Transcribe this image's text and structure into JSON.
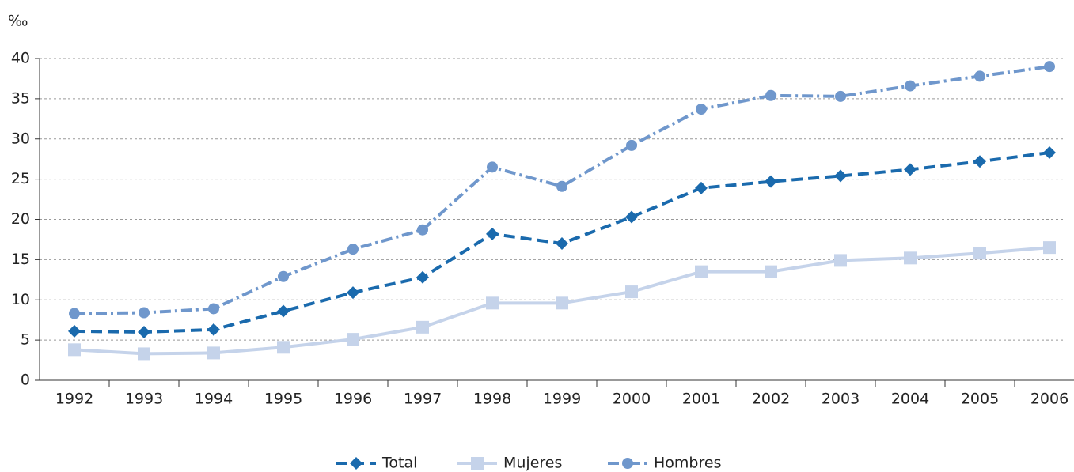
{
  "chart_data": {
    "type": "line",
    "y_unit": "‰",
    "categories": [
      "1992",
      "1993",
      "1994",
      "1995",
      "1996",
      "1997",
      "1998",
      "1999",
      "2000",
      "2001",
      "2002",
      "2003",
      "2004",
      "2005",
      "2006"
    ],
    "series": [
      {
        "name": "Total",
        "color": "#1a6aad",
        "style": "dashed",
        "marker": "diamond",
        "values": [
          6.1,
          6.0,
          6.3,
          8.6,
          10.9,
          12.8,
          18.2,
          17.0,
          20.3,
          23.9,
          24.7,
          25.4,
          26.2,
          27.2,
          28.3
        ]
      },
      {
        "name": "Mujeres",
        "color": "#c5d3ea",
        "style": "solid",
        "marker": "square",
        "values": [
          3.8,
          3.3,
          3.4,
          4.1,
          5.1,
          6.6,
          9.6,
          9.6,
          11.0,
          13.5,
          13.5,
          14.9,
          15.2,
          15.8,
          16.5
        ]
      },
      {
        "name": "Hombres",
        "color": "#6f97cc",
        "style": "dashdot",
        "marker": "circle",
        "values": [
          8.3,
          8.4,
          8.9,
          12.9,
          16.3,
          18.7,
          26.5,
          24.1,
          29.2,
          33.7,
          35.4,
          35.3,
          36.6,
          37.8,
          39.0
        ]
      }
    ],
    "ylim": [
      0,
      40
    ],
    "yticks": [
      0,
      5,
      10,
      15,
      20,
      25,
      30,
      35,
      40
    ],
    "grid": true,
    "legend": "bottom"
  }
}
